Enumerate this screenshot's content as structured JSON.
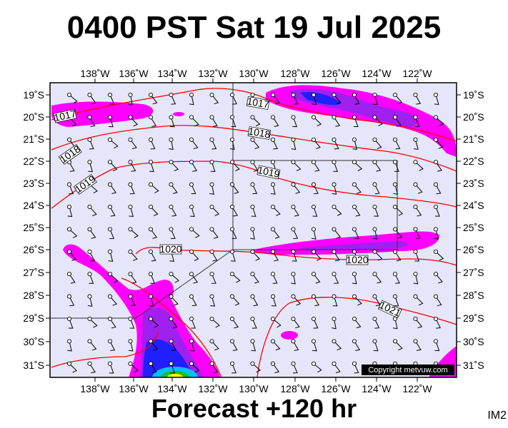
{
  "title": "0400 PST Sat 19 Jul 2025",
  "footer": "Forecast +120 hr",
  "image_code": "IM2",
  "copyright": "Copyright metvuw.com",
  "axes": {
    "longitudes": [
      "138˚W",
      "136˚W",
      "134˚W",
      "132˚W",
      "130˚W",
      "128˚W",
      "126˚W",
      "124˚W",
      "122˚W"
    ],
    "latitudes": [
      "19˚S",
      "20˚S",
      "21˚S",
      "22˚S",
      "23˚S",
      "24˚S",
      "25˚S",
      "26˚S",
      "27˚S",
      "28˚S",
      "29˚S",
      "30˚S",
      "31˚S"
    ]
  },
  "isobars": [
    {
      "value": "1017"
    },
    {
      "value": "1017"
    },
    {
      "value": "1018"
    },
    {
      "value": "1018"
    },
    {
      "value": "1019"
    },
    {
      "value": "1019"
    },
    {
      "value": "1020"
    },
    {
      "value": "1020"
    },
    {
      "value": "1021"
    }
  ],
  "colors": {
    "ocean": "#e6e6fa",
    "isobar": "#ff0000",
    "rain_light": "#ff00ff",
    "rain_medium": "#a020f0",
    "rain_heavy": "#2020ff",
    "rain_intense": "#00c0ff",
    "rain_peak": "#ffff00"
  }
}
